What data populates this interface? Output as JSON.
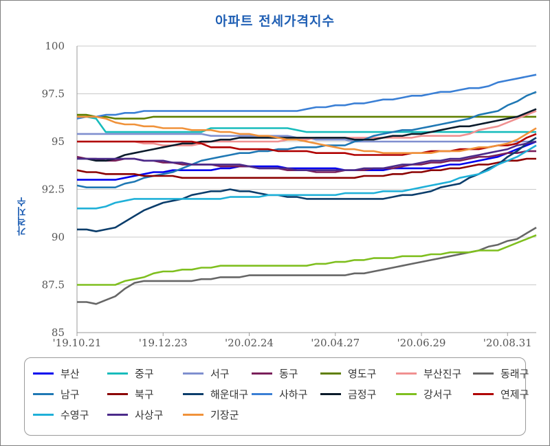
{
  "chart_data": {
    "type": "line",
    "title": "아파트 전세가격지수",
    "ylabel": "가격지수",
    "xlabel": "",
    "ylim": [
      85,
      100
    ],
    "yticks": [
      "85",
      "87.5",
      "90",
      "92.5",
      "95",
      "97.5",
      "100"
    ],
    "xticks": [
      "'19.10.21",
      "'19.12.23",
      "'20.02.24",
      "'20.04.27",
      "'20.06.29",
      "'20.08.31"
    ],
    "grid": "horizontal",
    "legend_position": "bottom",
    "n_points": 49,
    "series": [
      {
        "name": "부산",
        "color": "#0000ee",
        "keys": [
          [
            0,
            93.0
          ],
          [
            4,
            93.0
          ],
          [
            7,
            93.3
          ],
          [
            10,
            93.5
          ],
          [
            13,
            93.5
          ],
          [
            18,
            93.7
          ],
          [
            24,
            93.6
          ],
          [
            30,
            93.5
          ],
          [
            36,
            93.6
          ],
          [
            40,
            93.8
          ],
          [
            44,
            94.2
          ],
          [
            48,
            95.0
          ]
        ]
      },
      {
        "name": "중구",
        "color": "#17bcbc",
        "keys": [
          [
            0,
            96.3
          ],
          [
            2,
            96.2
          ],
          [
            3,
            95.5
          ],
          [
            13,
            95.5
          ],
          [
            14,
            95.7
          ],
          [
            22,
            95.7
          ],
          [
            24,
            95.5
          ],
          [
            48,
            95.5
          ]
        ]
      },
      {
        "name": "서구",
        "color": "#7f8fcf",
        "keys": [
          [
            0,
            95.4
          ],
          [
            13,
            95.4
          ],
          [
            14,
            95.3
          ],
          [
            22,
            95.3
          ],
          [
            23,
            95.2
          ],
          [
            30,
            95.0
          ],
          [
            36,
            95.0
          ],
          [
            48,
            95.0
          ]
        ]
      },
      {
        "name": "동구",
        "color": "#7a1f5a",
        "keys": [
          [
            0,
            94.2
          ],
          [
            3,
            94.0
          ],
          [
            6,
            94.1
          ],
          [
            9,
            93.9
          ],
          [
            12,
            93.8
          ],
          [
            17,
            93.7
          ],
          [
            20,
            93.6
          ],
          [
            26,
            93.4
          ],
          [
            32,
            93.6
          ],
          [
            40,
            94.0
          ],
          [
            44,
            94.3
          ],
          [
            48,
            94.5
          ]
        ]
      },
      {
        "name": "영도구",
        "color": "#5f7f00",
        "keys": [
          [
            0,
            96.4
          ],
          [
            2,
            96.3
          ],
          [
            4,
            96.2
          ],
          [
            7,
            96.2
          ],
          [
            8,
            96.3
          ],
          [
            48,
            96.3
          ]
        ]
      },
      {
        "name": "부산진구",
        "color": "#f09090",
        "keys": [
          [
            0,
            95.0
          ],
          [
            5,
            95.0
          ],
          [
            9,
            94.8
          ],
          [
            12,
            94.8
          ],
          [
            14,
            95.0
          ],
          [
            20,
            95.0
          ],
          [
            26,
            95.2
          ],
          [
            32,
            95.2
          ],
          [
            40,
            95.3
          ],
          [
            44,
            95.8
          ],
          [
            48,
            96.6
          ]
        ]
      },
      {
        "name": "동래구",
        "color": "#666666",
        "keys": [
          [
            0,
            86.6
          ],
          [
            2,
            86.5
          ],
          [
            4,
            86.9
          ],
          [
            6,
            87.6
          ],
          [
            8,
            87.7
          ],
          [
            12,
            87.7
          ],
          [
            16,
            87.9
          ],
          [
            20,
            88.0
          ],
          [
            28,
            88.0
          ],
          [
            31,
            88.2
          ],
          [
            34,
            88.5
          ],
          [
            38,
            88.9
          ],
          [
            42,
            89.3
          ],
          [
            46,
            89.9
          ],
          [
            48,
            90.5
          ]
        ]
      },
      {
        "name": "남구",
        "color": "#1f78b4",
        "keys": [
          [
            0,
            92.7
          ],
          [
            1,
            92.6
          ],
          [
            4,
            92.6
          ],
          [
            7,
            93.1
          ],
          [
            10,
            93.4
          ],
          [
            13,
            94.0
          ],
          [
            16,
            94.3
          ],
          [
            20,
            94.5
          ],
          [
            24,
            94.7
          ],
          [
            28,
            94.8
          ],
          [
            32,
            95.4
          ],
          [
            36,
            95.7
          ],
          [
            40,
            96.1
          ],
          [
            44,
            96.6
          ],
          [
            48,
            97.6
          ]
        ]
      },
      {
        "name": "북구",
        "color": "#8b0000",
        "keys": [
          [
            0,
            93.5
          ],
          [
            1,
            93.4
          ],
          [
            4,
            93.3
          ],
          [
            8,
            93.2
          ],
          [
            12,
            93.1
          ],
          [
            16,
            93.1
          ],
          [
            22,
            93.1
          ],
          [
            28,
            93.1
          ],
          [
            32,
            93.2
          ],
          [
            36,
            93.4
          ],
          [
            40,
            93.6
          ],
          [
            44,
            93.9
          ],
          [
            48,
            94.1
          ]
        ]
      },
      {
        "name": "해운대구",
        "color": "#0b3d6b",
        "keys": [
          [
            0,
            90.4
          ],
          [
            2,
            90.3
          ],
          [
            4,
            90.5
          ],
          [
            6,
            91.1
          ],
          [
            8,
            91.6
          ],
          [
            10,
            91.9
          ],
          [
            13,
            92.3
          ],
          [
            16,
            92.5
          ],
          [
            20,
            92.2
          ],
          [
            24,
            92.0
          ],
          [
            28,
            92.0
          ],
          [
            32,
            92.0
          ],
          [
            36,
            92.3
          ],
          [
            40,
            92.8
          ],
          [
            44,
            93.8
          ],
          [
            48,
            95.2
          ]
        ]
      },
      {
        "name": "사하구",
        "color": "#3a7fd5",
        "keys": [
          [
            0,
            96.2
          ],
          [
            2,
            96.3
          ],
          [
            4,
            96.4
          ],
          [
            6,
            96.5
          ],
          [
            8,
            96.6
          ],
          [
            10,
            96.6
          ],
          [
            12,
            96.6
          ],
          [
            16,
            96.6
          ],
          [
            22,
            96.6
          ],
          [
            26,
            96.8
          ],
          [
            30,
            97.0
          ],
          [
            34,
            97.3
          ],
          [
            38,
            97.6
          ],
          [
            42,
            97.8
          ],
          [
            46,
            98.3
          ],
          [
            48,
            98.5
          ]
        ]
      },
      {
        "name": "금정구",
        "color": "#0a1a2a",
        "keys": [
          [
            0,
            94.1
          ],
          [
            3,
            94.0
          ],
          [
            6,
            94.4
          ],
          [
            10,
            94.8
          ],
          [
            14,
            95.0
          ],
          [
            18,
            95.2
          ],
          [
            22,
            95.2
          ],
          [
            26,
            95.2
          ],
          [
            30,
            95.1
          ],
          [
            34,
            95.3
          ],
          [
            38,
            95.6
          ],
          [
            42,
            95.9
          ],
          [
            46,
            96.3
          ],
          [
            48,
            96.7
          ]
        ]
      },
      {
        "name": "강서구",
        "color": "#7fbf1f",
        "keys": [
          [
            0,
            87.5
          ],
          [
            4,
            87.5
          ],
          [
            6,
            87.8
          ],
          [
            8,
            88.1
          ],
          [
            10,
            88.2
          ],
          [
            13,
            88.4
          ],
          [
            17,
            88.5
          ],
          [
            24,
            88.5
          ],
          [
            28,
            88.7
          ],
          [
            32,
            88.9
          ],
          [
            36,
            89.0
          ],
          [
            40,
            89.2
          ],
          [
            44,
            89.3
          ],
          [
            48,
            90.1
          ]
        ]
      },
      {
        "name": "연제구",
        "color": "#b00000",
        "keys": [
          [
            0,
            95.0
          ],
          [
            12,
            95.0
          ],
          [
            14,
            94.7
          ],
          [
            18,
            94.6
          ],
          [
            22,
            94.5
          ],
          [
            26,
            94.4
          ],
          [
            30,
            94.3
          ],
          [
            34,
            94.3
          ],
          [
            38,
            94.5
          ],
          [
            42,
            94.6
          ],
          [
            46,
            94.9
          ],
          [
            48,
            95.4
          ]
        ]
      },
      {
        "name": "수영구",
        "color": "#1fb0d8",
        "keys": [
          [
            0,
            91.5
          ],
          [
            2,
            91.5
          ],
          [
            3,
            91.6
          ],
          [
            5,
            91.9
          ],
          [
            7,
            92.0
          ],
          [
            10,
            92.0
          ],
          [
            14,
            92.0
          ],
          [
            18,
            92.1
          ],
          [
            22,
            92.2
          ],
          [
            26,
            92.2
          ],
          [
            30,
            92.3
          ],
          [
            34,
            92.4
          ],
          [
            38,
            92.8
          ],
          [
            42,
            93.3
          ],
          [
            46,
            94.2
          ],
          [
            48,
            94.8
          ]
        ]
      },
      {
        "name": "사상구",
        "color": "#4b2a8a",
        "keys": [
          [
            0,
            94.1
          ],
          [
            4,
            94.1
          ],
          [
            8,
            94.0
          ],
          [
            12,
            93.8
          ],
          [
            16,
            93.8
          ],
          [
            20,
            93.6
          ],
          [
            24,
            93.5
          ],
          [
            28,
            93.5
          ],
          [
            32,
            93.6
          ],
          [
            36,
            93.9
          ],
          [
            40,
            94.1
          ],
          [
            44,
            94.5
          ],
          [
            48,
            95.0
          ]
        ]
      },
      {
        "name": "기장군",
        "color": "#f0923a",
        "keys": [
          [
            0,
            96.3
          ],
          [
            2,
            96.3
          ],
          [
            4,
            96.0
          ],
          [
            7,
            95.8
          ],
          [
            10,
            95.7
          ],
          [
            13,
            95.6
          ],
          [
            17,
            95.4
          ],
          [
            21,
            95.2
          ],
          [
            25,
            94.9
          ],
          [
            28,
            94.6
          ],
          [
            32,
            94.4
          ],
          [
            36,
            94.4
          ],
          [
            40,
            94.5
          ],
          [
            44,
            94.8
          ],
          [
            46,
            95.1
          ],
          [
            48,
            95.7
          ]
        ]
      }
    ]
  }
}
